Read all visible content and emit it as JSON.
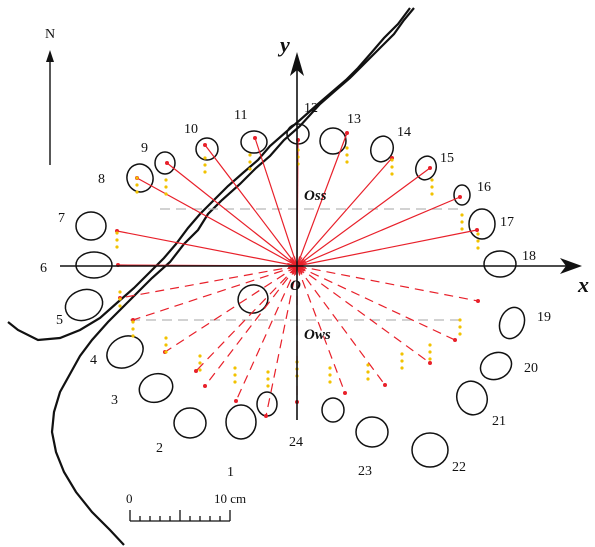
{
  "figure": {
    "north_label": "N",
    "axis_x_label": "x",
    "axis_y_label": "y",
    "origin_label": "O",
    "oss_label": "Oss",
    "ows_label": "Ows",
    "scale": {
      "start_label": "0",
      "end_label": "10 cm"
    },
    "colors": {
      "ray": "#e8202a",
      "dot_yellow": "#f2c200",
      "outline": "#111111",
      "guide": "#b8b8b8"
    },
    "hole_labels": [
      "1",
      "2",
      "3",
      "4",
      "5",
      "6",
      "7",
      "8",
      "9",
      "10",
      "11",
      "12",
      "13",
      "14",
      "15",
      "16",
      "17",
      "18",
      "19",
      "20",
      "21",
      "22",
      "23",
      "24"
    ]
  }
}
